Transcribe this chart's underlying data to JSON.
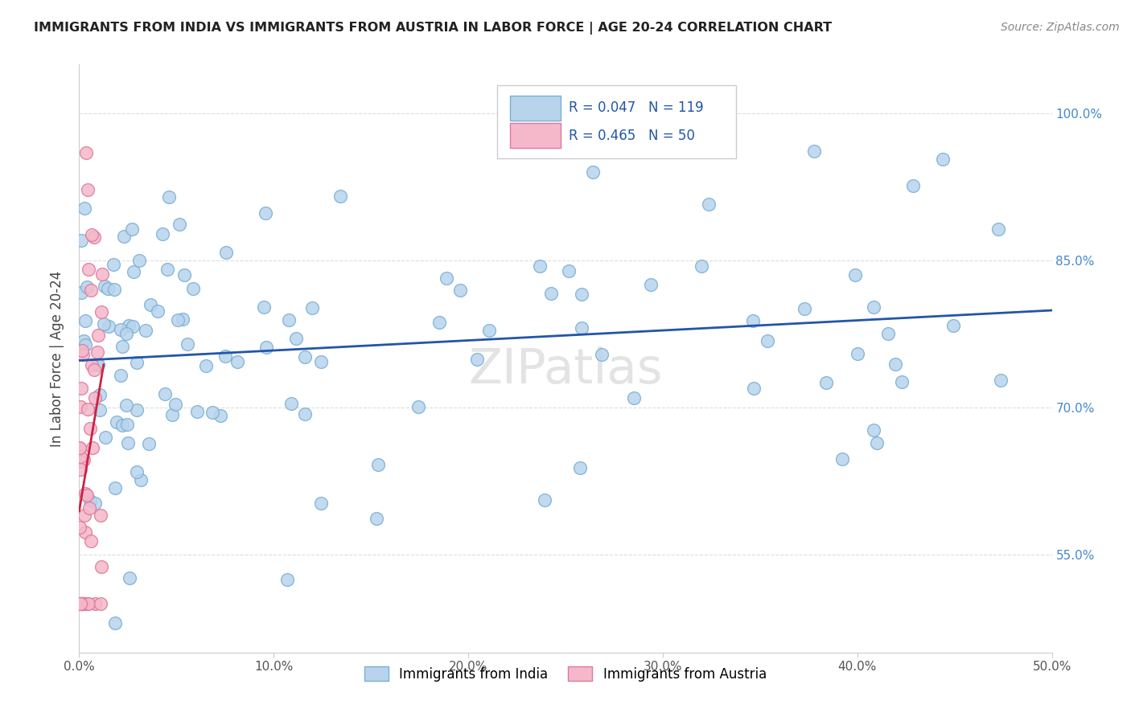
{
  "title": "IMMIGRANTS FROM INDIA VS IMMIGRANTS FROM AUSTRIA IN LABOR FORCE | AGE 20-24 CORRELATION CHART",
  "source": "Source: ZipAtlas.com",
  "ylabel": "In Labor Force | Age 20-24",
  "xlim": [
    0.0,
    0.5
  ],
  "ylim": [
    0.45,
    1.05
  ],
  "yticks": [
    0.55,
    0.7,
    0.85,
    1.0
  ],
  "ytick_labels": [
    "55.0%",
    "70.0%",
    "85.0%",
    "100.0%"
  ],
  "xticks": [
    0.0,
    0.1,
    0.2,
    0.3,
    0.4,
    0.5
  ],
  "xtick_labels": [
    "0.0%",
    "10.0%",
    "20.0%",
    "30.0%",
    "40.0%",
    "50.0%"
  ],
  "india_color": "#b8d4ed",
  "austria_color": "#f4b8ca",
  "india_edge": "#7aafd4",
  "austria_edge": "#e07898",
  "regression_india_color": "#2255aa",
  "regression_austria_color": "#cc2244",
  "india_R": 0.047,
  "india_N": 119,
  "austria_R": 0.465,
  "austria_N": 50,
  "legend_label_india": "Immigrants from India",
  "legend_label_austria": "Immigrants from Austria",
  "watermark": "ZIPatlas",
  "tick_label_color": "#4488cc",
  "title_color": "#222222",
  "source_color": "#888888"
}
